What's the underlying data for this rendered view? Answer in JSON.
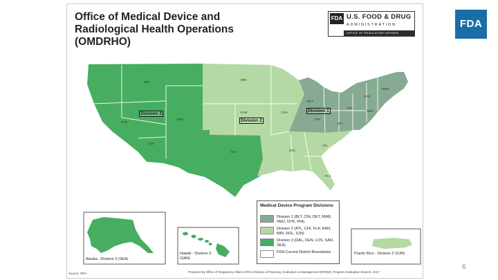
{
  "slide": {
    "title": "Office of Medical Device and Radiological Health Operations (OMDRHO)",
    "page_number": "6"
  },
  "fda_banner": {
    "logo_text": "FDA",
    "agency": "U.S. FOOD & DRUG",
    "administration": "ADMINISTRATION",
    "office": "OFFICE OF REGULATORY AFFAIRS"
  },
  "fda_logo": {
    "text": "FDA",
    "color": "#1a6ea8"
  },
  "colors": {
    "division1": "#86ab92",
    "division2": "#b5d9a4",
    "division3": "#47ad61",
    "boundary": "#ffffff"
  },
  "map": {
    "division_labels": {
      "d1": "Division 1",
      "d2": "Division 2",
      "d3": "Division 3"
    },
    "offices": {
      "sea": "SEA",
      "san": "SAN",
      "den": "DEN",
      "los": "LOS",
      "dal": "DAL",
      "min": "MIN",
      "kan": "KAN",
      "cha": "CHA",
      "nol": "NOL",
      "atl": "ATL",
      "fla": "FLA",
      "det": "DET",
      "cin": "CIN",
      "phi": "PHI",
      "nwj": "NWJ",
      "nye": "NYE",
      "nwe": "NWE",
      "blt": "BLT"
    }
  },
  "legend": {
    "title": "Medical Device Program Divisions",
    "items": [
      {
        "label": "Division 1 (BLT, CIN, DET, NWE, NWJ, NYK, PHI)",
        "color": "#86ab92"
      },
      {
        "label": "Division 2 (ATL, CHI, FLA, KAN, MIN, NOL, SJN)",
        "color": "#b5d9a4"
      },
      {
        "label": "Division 3 (DAL, DEN, LOS, SAN, SEA)",
        "color": "#47ad61"
      },
      {
        "label": "FDA Current District Boundaries",
        "color": "#ffffff"
      }
    ]
  },
  "insets": {
    "alaska": "Alaska - Division 3 (SEA)",
    "hawaii": "Hawaii - Division 3 (SAN)",
    "puerto_rico": "Puerto Rico - Division 2 (SJN)"
  },
  "footer": {
    "source": "Source: ORA",
    "prepared": "Prepared by Office of Regulatory Affairs (ORA) Division of Planning, Evaluation & Management (DPEM), Program Evaluation Branch, 2017"
  }
}
